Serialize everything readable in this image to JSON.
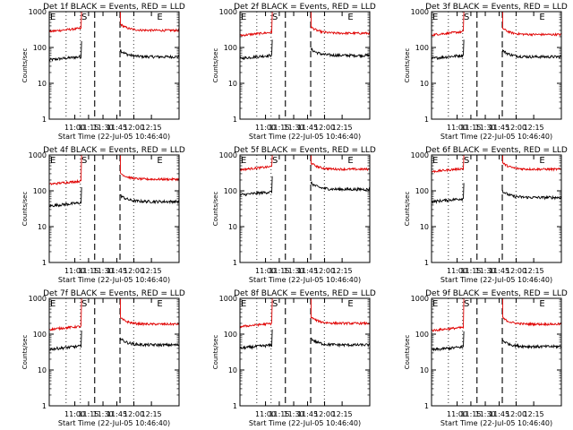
{
  "page": {
    "background": "#ffffff"
  },
  "colors": {
    "events": "#000000",
    "lld": "#e00000",
    "axes": "#000000"
  },
  "chart_data": [
    {
      "type": "line",
      "title": "Det 1f BLACK = Events, RED = LLD",
      "ylabel": "Counts/sec",
      "xlabel": "Start Time (22-Jul-05 10:46:40)",
      "xticklabels": [
        "11:00",
        "11:15",
        "11:30",
        "11:45",
        "12:00",
        "12:15"
      ],
      "yticklabels": [
        "1",
        "10",
        "100",
        "1000"
      ],
      "ylim": [
        1,
        1000
      ],
      "markers": [
        "E",
        "S",
        "E"
      ],
      "series": [
        {
          "name": "Events",
          "color": "#000000",
          "pre": 50,
          "post": 55
        },
        {
          "name": "LLD",
          "color": "#e00000",
          "pre": 310,
          "post": 300
        }
      ]
    },
    {
      "type": "line",
      "title": "Det 2f BLACK = Events, RED = LLD",
      "ylabel": "Counts/sec",
      "xlabel": "Start Time (22-Jul-05 10:46:40)",
      "xticklabels": [
        "11:00",
        "11:15",
        "11:30",
        "11:45",
        "12:00",
        "12:15"
      ],
      "yticklabels": [
        "1",
        "10",
        "100",
        "1000"
      ],
      "ylim": [
        1,
        1000
      ],
      "markers": [
        "E",
        "S",
        "E"
      ],
      "series": [
        {
          "name": "Events",
          "color": "#000000",
          "pre": 55,
          "post": 60
        },
        {
          "name": "LLD",
          "color": "#e00000",
          "pre": 240,
          "post": 250
        }
      ]
    },
    {
      "type": "line",
      "title": "Det 3f BLACK = Events, RED = LLD",
      "ylabel": "Counts/sec",
      "xlabel": "Start Time (22-Jul-05 10:46:40)",
      "xticklabels": [
        "11:00",
        "11:15",
        "11:30",
        "11:45",
        "12:00",
        "12:15"
      ],
      "yticklabels": [
        "1",
        "10",
        "100",
        "1000"
      ],
      "ylim": [
        1,
        1000
      ],
      "markers": [
        "E",
        "S",
        "E"
      ],
      "series": [
        {
          "name": "Events",
          "color": "#000000",
          "pre": 55,
          "post": 55
        },
        {
          "name": "LLD",
          "color": "#e00000",
          "pre": 250,
          "post": 230
        }
      ]
    },
    {
      "type": "line",
      "title": "Det 4f BLACK = Events, RED = LLD",
      "ylabel": "Counts/sec",
      "xlabel": "Start Time (22-Jul-05 10:46:40)",
      "xticklabels": [
        "11:00",
        "11:15",
        "11:30",
        "11:45",
        "12:00",
        "12:15"
      ],
      "yticklabels": [
        "1",
        "10",
        "100",
        "1000"
      ],
      "ylim": [
        1,
        1000
      ],
      "markers": [
        "E",
        "S",
        "E"
      ],
      "series": [
        {
          "name": "Events",
          "color": "#000000",
          "pre": 42,
          "post": 50
        },
        {
          "name": "LLD",
          "color": "#e00000",
          "pre": 170,
          "post": 210
        }
      ]
    },
    {
      "type": "line",
      "title": "Det 5f BLACK = Events, RED = LLD",
      "ylabel": "Counts/sec",
      "xlabel": "Start Time (22-Jul-05 10:46:40)",
      "xticklabels": [
        "11:00",
        "11:15",
        "11:30",
        "11:45",
        "12:00",
        "12:15"
      ],
      "yticklabels": [
        "1",
        "10",
        "100",
        "1000"
      ],
      "ylim": [
        1,
        1000
      ],
      "markers": [
        "E",
        "S",
        "E"
      ],
      "series": [
        {
          "name": "Events",
          "color": "#000000",
          "pre": 85,
          "post": 110
        },
        {
          "name": "LLD",
          "color": "#e00000",
          "pre": 430,
          "post": 400
        }
      ]
    },
    {
      "type": "line",
      "title": "Det 6f BLACK = Events, RED = LLD",
      "ylabel": "Counts/sec",
      "xlabel": "Start Time (22-Jul-05 10:46:40)",
      "xticklabels": [
        "11:00",
        "11:15",
        "11:30",
        "11:45",
        "12:00",
        "12:15"
      ],
      "yticklabels": [
        "1",
        "10",
        "100",
        "1000"
      ],
      "ylim": [
        1,
        1000
      ],
      "markers": [
        "E",
        "S",
        "E"
      ],
      "series": [
        {
          "name": "Events",
          "color": "#000000",
          "pre": 55,
          "post": 65
        },
        {
          "name": "LLD",
          "color": "#e00000",
          "pre": 380,
          "post": 400
        }
      ]
    },
    {
      "type": "line",
      "title": "Det 7f BLACK = Events, RED = LLD",
      "ylabel": "Counts/sec",
      "xlabel": "Start Time (22-Jul-05 10:46:40)",
      "xticklabels": [
        "11:00",
        "11:15",
        "11:30",
        "11:45",
        "12:00",
        "12:15"
      ],
      "yticklabels": [
        "1",
        "10",
        "100",
        "1000"
      ],
      "ylim": [
        1,
        1000
      ],
      "markers": [
        "E",
        "S",
        "E"
      ],
      "series": [
        {
          "name": "Events",
          "color": "#000000",
          "pre": 42,
          "post": 50
        },
        {
          "name": "LLD",
          "color": "#e00000",
          "pre": 150,
          "post": 190
        }
      ]
    },
    {
      "type": "line",
      "title": "Det 8f BLACK = Events, RED = LLD",
      "ylabel": "Counts/sec",
      "xlabel": "Start Time (22-Jul-05 10:46:40)",
      "xticklabels": [
        "11:00",
        "11:15",
        "11:30",
        "11:45",
        "12:00",
        "12:15"
      ],
      "yticklabels": [
        "1",
        "10",
        "100",
        "1000"
      ],
      "ylim": [
        1,
        1000
      ],
      "markers": [
        "E",
        "S",
        "E"
      ],
      "series": [
        {
          "name": "Events",
          "color": "#000000",
          "pre": 45,
          "post": 50
        },
        {
          "name": "LLD",
          "color": "#e00000",
          "pre": 180,
          "post": 200
        }
      ]
    },
    {
      "type": "line",
      "title": "Det 9f BLACK = Events, RED = LLD",
      "ylabel": "Counts/sec",
      "xlabel": "Start Time (22-Jul-05 10:46:40)",
      "xticklabels": [
        "11:00",
        "11:15",
        "11:30",
        "11:45",
        "12:00",
        "12:15"
      ],
      "yticklabels": [
        "1",
        "10",
        "100",
        "1000"
      ],
      "ylim": [
        1,
        1000
      ],
      "markers": [
        "E",
        "S",
        "E"
      ],
      "series": [
        {
          "name": "Events",
          "color": "#000000",
          "pre": 40,
          "post": 45
        },
        {
          "name": "LLD",
          "color": "#e00000",
          "pre": 140,
          "post": 190
        }
      ]
    }
  ]
}
